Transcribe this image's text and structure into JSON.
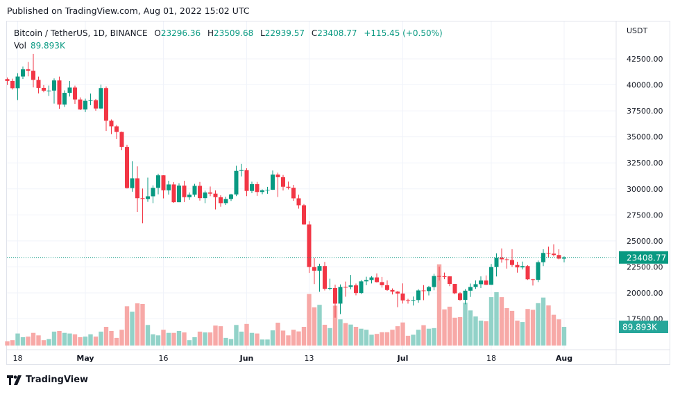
{
  "published": "Published on TradingView.com, Aug 01, 2022 15:02 UTC",
  "legend": {
    "symbol": "Bitcoin / TetherUS, 1D, BINANCE",
    "open_label": "O",
    "open": "23296.36",
    "high_label": "H",
    "high": "23509.68",
    "low_label": "L",
    "low": "22939.57",
    "close_label": "C",
    "close": "23408.77",
    "change": "+115.45 (+0.50%)",
    "vol_label": "Vol",
    "vol": "89.893K"
  },
  "footer": {
    "brand": "TradingView"
  },
  "colors": {
    "up": "#089981",
    "down": "#f23645",
    "vol_up": "#92d2c8",
    "vol_down": "#f7a9a7"
  },
  "chart_data": {
    "type": "candlestick",
    "currency_label": "USDT",
    "price_ticks": [
      "42500.00",
      "40000.00",
      "37500.00",
      "35000.00",
      "32500.00",
      "30000.00",
      "27500.00",
      "25000.00",
      "22500.00",
      "20000.00",
      "17500.00"
    ],
    "ylim": [
      16500,
      43500
    ],
    "time_ticks": [
      {
        "date": "2022-04-18",
        "label": "18",
        "bold": false
      },
      {
        "date": "2022-05-01",
        "label": "May",
        "bold": true
      },
      {
        "date": "2022-05-16",
        "label": "16",
        "bold": false
      },
      {
        "date": "2022-06-01",
        "label": "Jun",
        "bold": true
      },
      {
        "date": "2022-06-13",
        "label": "13",
        "bold": false
      },
      {
        "date": "2022-07-01",
        "label": "Jul",
        "bold": true
      },
      {
        "date": "2022-07-18",
        "label": "18",
        "bold": false
      },
      {
        "date": "2022-08-01",
        "label": "Aug",
        "bold": true
      }
    ],
    "last_price_label": "23408.77",
    "last_volume_label": "89.893K",
    "volume_unit": "K",
    "start_date": "2022-04-16",
    "ohlc": [
      [
        40554,
        40709,
        39991,
        40378
      ],
      [
        40378,
        40595,
        39546,
        39678
      ],
      [
        39678,
        41116,
        38536,
        40801
      ],
      [
        40801,
        41760,
        40571,
        41493
      ],
      [
        41493,
        42199,
        40820,
        41358
      ],
      [
        41358,
        42976,
        39751,
        40480
      ],
      [
        40480,
        40795,
        39177,
        39709
      ],
      [
        39709,
        39980,
        39285,
        39441
      ],
      [
        39441,
        39940,
        38929,
        39450
      ],
      [
        39450,
        40616,
        38200,
        40426
      ],
      [
        40426,
        40797,
        37702,
        38112
      ],
      [
        38112,
        39474,
        37881,
        39235
      ],
      [
        39235,
        40372,
        38881,
        39742
      ],
      [
        39742,
        39925,
        38175,
        38596
      ],
      [
        38596,
        38795,
        37578,
        37630
      ],
      [
        37630,
        38675,
        37386,
        38468
      ],
      [
        38468,
        39167,
        38052,
        38525
      ],
      [
        38525,
        38651,
        37517,
        37728
      ],
      [
        37728,
        40023,
        37670,
        39690
      ],
      [
        39690,
        39845,
        35571,
        36552
      ],
      [
        36552,
        36675,
        35258,
        36013
      ],
      [
        36013,
        36146,
        34785,
        35472
      ],
      [
        35472,
        35514,
        33713,
        34038
      ],
      [
        34038,
        34243,
        30033,
        30077
      ],
      [
        30077,
        32659,
        29730,
        31017
      ],
      [
        31017,
        32162,
        27785,
        29103
      ],
      [
        29103,
        30033,
        26700,
        29029
      ],
      [
        29029,
        31083,
        28751,
        29287
      ],
      [
        29287,
        30343,
        28630,
        30101
      ],
      [
        30101,
        31460,
        29480,
        31305
      ],
      [
        31305,
        31319,
        29087,
        29862
      ],
      [
        29862,
        30788,
        29450,
        30425
      ],
      [
        30425,
        30662,
        28654,
        28715
      ],
      [
        28715,
        30545,
        28708,
        30319
      ],
      [
        30319,
        30777,
        28730,
        29201
      ],
      [
        29201,
        29656,
        28947,
        29445
      ],
      [
        29445,
        30487,
        29255,
        30293
      ],
      [
        30293,
        30670,
        28866,
        29109
      ],
      [
        29109,
        29837,
        28630,
        29654
      ],
      [
        29654,
        30223,
        29295,
        29542
      ],
      [
        29542,
        29856,
        28019,
        29201
      ],
      [
        29201,
        29397,
        28282,
        28629
      ],
      [
        28629,
        29250,
        28450,
        29031
      ],
      [
        29031,
        29530,
        28839,
        29468
      ],
      [
        29468,
        32222,
        29299,
        31734
      ],
      [
        31734,
        32399,
        31200,
        31801
      ],
      [
        31801,
        31982,
        29301,
        29805
      ],
      [
        29805,
        30689,
        29594,
        30452
      ],
      [
        30452,
        30675,
        29328,
        29700
      ],
      [
        29700,
        29950,
        29485,
        29864
      ],
      [
        29864,
        30189,
        29531,
        29919
      ],
      [
        29919,
        31765,
        29890,
        31373
      ],
      [
        31373,
        31556,
        29218,
        31125
      ],
      [
        31125,
        31338,
        29844,
        30204
      ],
      [
        30204,
        30700,
        29944,
        30109
      ],
      [
        30109,
        30382,
        28850,
        29091
      ],
      [
        29091,
        29440,
        28100,
        28424
      ],
      [
        28424,
        28544,
        26560,
        26574
      ],
      [
        26574,
        26895,
        21925,
        22487
      ],
      [
        22487,
        23362,
        20846,
        22136
      ],
      [
        22136,
        22800,
        20111,
        22583
      ],
      [
        22583,
        22980,
        20232,
        20401
      ],
      [
        20401,
        21365,
        20246,
        20468
      ],
      [
        20468,
        20792,
        17622,
        18970
      ],
      [
        18970,
        20815,
        17960,
        20574
      ],
      [
        20574,
        21090,
        19637,
        20573
      ],
      [
        20573,
        21723,
        20348,
        20723
      ],
      [
        20723,
        20900,
        19770,
        19987
      ],
      [
        19987,
        21233,
        19890,
        21110
      ],
      [
        21110,
        21558,
        20740,
        21237
      ],
      [
        21237,
        21614,
        20906,
        21491
      ],
      [
        21491,
        21868,
        21000,
        21038
      ],
      [
        21038,
        21540,
        20510,
        20742
      ],
      [
        20742,
        21200,
        20200,
        20281
      ],
      [
        20281,
        20432,
        19854,
        20123
      ],
      [
        20123,
        20179,
        18626,
        19942
      ],
      [
        19942,
        20918,
        18975,
        19279
      ],
      [
        19279,
        19433,
        18966,
        19252
      ],
      [
        19252,
        19647,
        18781,
        19315
      ],
      [
        19315,
        20354,
        19055,
        20236
      ],
      [
        20236,
        20750,
        19304,
        20175
      ],
      [
        20175,
        20675,
        19761,
        20564
      ],
      [
        20564,
        21838,
        20251,
        21624
      ],
      [
        21624,
        22527,
        21189,
        21594
      ],
      [
        21594,
        21954,
        21323,
        21591
      ],
      [
        21591,
        21591,
        20652,
        20862
      ],
      [
        20862,
        20868,
        19875,
        19963
      ],
      [
        19963,
        20059,
        19240,
        19328
      ],
      [
        19328,
        20366,
        18910,
        20212
      ],
      [
        20212,
        20900,
        19616,
        20569
      ],
      [
        20569,
        21200,
        20383,
        20836
      ],
      [
        20836,
        21588,
        20478,
        21190
      ],
      [
        21190,
        21683,
        20755,
        20779
      ],
      [
        20779,
        22777,
        20762,
        22485
      ],
      [
        22485,
        23800,
        21582,
        23389
      ],
      [
        23389,
        24276,
        22906,
        23231
      ],
      [
        23231,
        23442,
        22341,
        23164
      ],
      [
        23164,
        24200,
        22500,
        22684
      ],
      [
        22684,
        22998,
        21950,
        22451
      ],
      [
        22451,
        23014,
        22257,
        22579
      ],
      [
        22579,
        22666,
        21250,
        21310
      ],
      [
        21310,
        21347,
        20706,
        21254
      ],
      [
        21254,
        23112,
        21042,
        22952
      ],
      [
        22952,
        24199,
        22582,
        23842
      ],
      [
        23842,
        24442,
        23414,
        23774
      ],
      [
        23774,
        24668,
        23502,
        23643
      ],
      [
        23643,
        24194,
        23227,
        23296
      ],
      [
        23296.36,
        23509.68,
        22939.57,
        23408.77
      ]
    ],
    "volume": [
      20,
      26,
      58,
      40,
      43,
      61,
      49,
      26,
      31,
      67,
      70,
      61,
      58,
      54,
      40,
      43,
      54,
      43,
      67,
      90,
      70,
      37,
      76,
      189,
      163,
      203,
      200,
      99,
      54,
      49,
      76,
      61,
      61,
      70,
      63,
      26,
      40,
      67,
      63,
      63,
      96,
      93,
      37,
      31,
      99,
      67,
      104,
      61,
      58,
      29,
      29,
      73,
      110,
      72,
      49,
      76,
      68,
      90,
      248,
      184,
      196,
      100,
      84,
      192,
      126,
      108,
      101,
      90,
      81,
      76,
      52,
      56,
      64,
      64,
      76,
      93,
      111,
      47,
      52,
      76,
      98,
      81,
      84,
      391,
      174,
      187,
      134,
      137,
      206,
      169,
      140,
      120,
      117,
      233,
      257,
      233,
      180,
      167,
      120,
      113,
      176,
      172,
      204,
      231,
      193,
      148,
      126,
      89.893
    ]
  }
}
